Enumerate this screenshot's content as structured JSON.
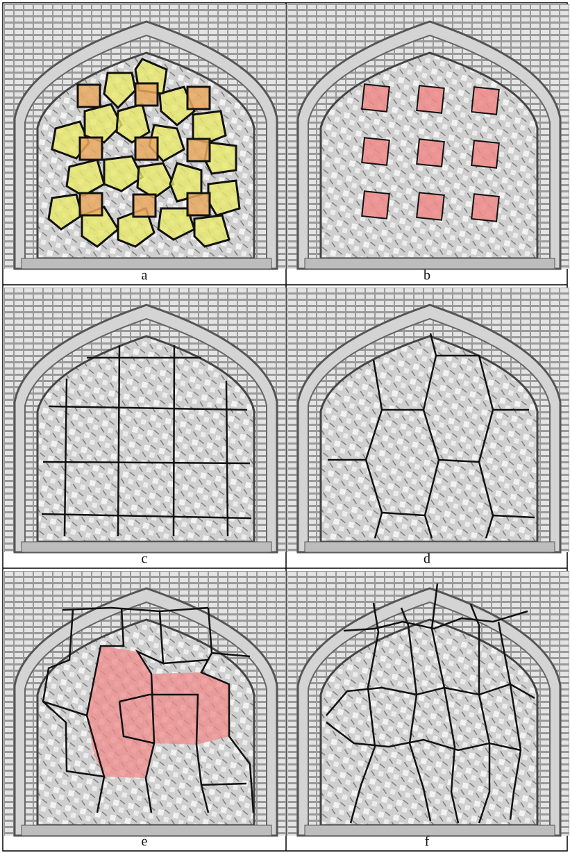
{
  "figure": {
    "panels": [
      {
        "caption": "a"
      },
      {
        "caption": "b"
      },
      {
        "caption": "c"
      },
      {
        "caption": "d"
      },
      {
        "caption": "e"
      },
      {
        "caption": "f"
      }
    ]
  }
}
